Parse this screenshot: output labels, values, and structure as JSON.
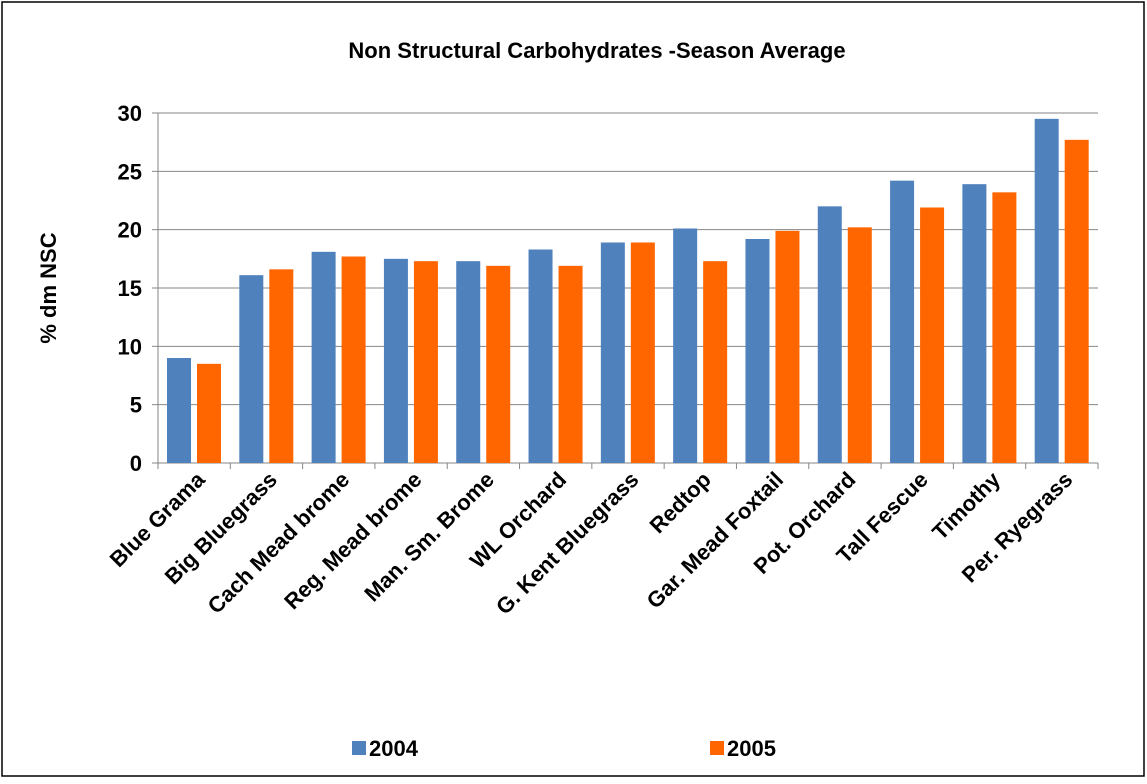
{
  "chart_data": {
    "type": "bar",
    "title": "Non Structural Carbohydrates -Season Average",
    "y_label": "% dm NSC",
    "categories": [
      "Blue Grama",
      "Big Bluegrass",
      "Cach Mead brome",
      "Reg. Mead brome",
      "Man. Sm. Brome",
      "WL Orchard",
      "G. Kent Bluegrass",
      "Redtop",
      "Gar. Mead Foxtail",
      "Pot. Orchard",
      "Tall Fescue",
      "Timothy",
      "Per. Ryegrass"
    ],
    "series": [
      {
        "name": "2004",
        "color": "#4f81bd",
        "values": [
          9.0,
          16.1,
          18.1,
          17.5,
          17.3,
          18.3,
          18.9,
          20.1,
          19.2,
          22.0,
          24.2,
          23.9,
          29.5
        ]
      },
      {
        "name": "2005",
        "color": "#ff6600",
        "values": [
          8.5,
          16.6,
          17.7,
          17.3,
          16.9,
          16.9,
          18.9,
          17.3,
          19.9,
          20.2,
          21.9,
          23.2,
          27.7
        ]
      }
    ],
    "ylim": [
      0,
      30
    ],
    "yticks": [
      0,
      5,
      10,
      15,
      20,
      25,
      30
    ],
    "grid": true,
    "legend": "bottom"
  }
}
